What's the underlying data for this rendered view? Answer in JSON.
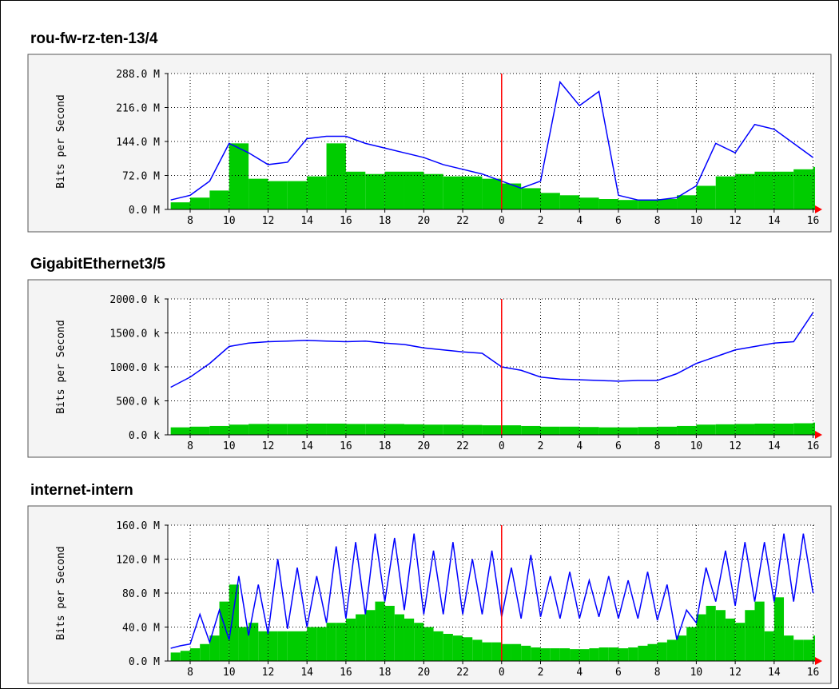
{
  "chart_data": [
    {
      "type": "mrtg",
      "title": "rou-fw-rz-ten-13/4",
      "y_label": "Bits per Second",
      "ylim": [
        0,
        288
      ],
      "yticks": [
        {
          "value": 0,
          "label": "0.0 M"
        },
        {
          "value": 72,
          "label": "72.0 M"
        },
        {
          "value": 144,
          "label": "144.0 M"
        },
        {
          "value": 216,
          "label": "216.0 M"
        },
        {
          "value": 288,
          "label": "288.0 M"
        }
      ],
      "xlim": [
        6.85,
        40.1
      ],
      "xticks": [
        8,
        10,
        12,
        14,
        16,
        18,
        20,
        22,
        {
          "value": 24,
          "label": "0"
        },
        {
          "value": 26,
          "label": "2"
        },
        {
          "value": 28,
          "label": "4"
        },
        {
          "value": 30,
          "label": "6"
        },
        {
          "value": 32,
          "label": "8"
        },
        {
          "value": 34,
          "label": "10"
        },
        {
          "value": 36,
          "label": "12"
        },
        {
          "value": 38,
          "label": "14"
        },
        {
          "value": 40,
          "label": "16"
        }
      ],
      "vline": 24,
      "grid": true,
      "x": [
        7,
        8,
        9,
        10,
        11,
        12,
        13,
        14,
        15,
        16,
        17,
        18,
        19,
        20,
        21,
        22,
        23,
        24,
        25,
        26,
        27,
        28,
        29,
        30,
        31,
        32,
        33,
        34,
        35,
        36,
        37,
        38,
        39,
        40
      ],
      "series": [
        {
          "style": "area",
          "color": "#00cc00",
          "values": [
            15,
            25,
            40,
            140,
            65,
            60,
            60,
            70,
            140,
            80,
            75,
            80,
            80,
            75,
            70,
            70,
            65,
            55,
            45,
            35,
            30,
            25,
            22,
            20,
            20,
            22,
            30,
            50,
            70,
            75,
            80,
            80,
            85,
            90
          ]
        },
        {
          "style": "line",
          "color": "#0000ff",
          "values": [
            20,
            30,
            60,
            140,
            120,
            95,
            100,
            150,
            155,
            155,
            140,
            130,
            120,
            110,
            95,
            85,
            75,
            60,
            45,
            60,
            270,
            220,
            250,
            30,
            20,
            20,
            25,
            50,
            140,
            120,
            180,
            170,
            140,
            110
          ]
        }
      ]
    },
    {
      "type": "mrtg",
      "title": "GigabitEthernet3/5",
      "y_label": "Bits per Second",
      "ylim": [
        0,
        2000
      ],
      "yticks": [
        {
          "value": 0,
          "label": "0.0 k"
        },
        {
          "value": 500,
          "label": "500.0 k"
        },
        {
          "value": 1000,
          "label": "1000.0 k"
        },
        {
          "value": 1500,
          "label": "1500.0 k"
        },
        {
          "value": 2000,
          "label": "2000.0 k"
        }
      ],
      "xlim": [
        6.85,
        40.1
      ],
      "xticks": [
        8,
        10,
        12,
        14,
        16,
        18,
        20,
        22,
        {
          "value": 24,
          "label": "0"
        },
        {
          "value": 26,
          "label": "2"
        },
        {
          "value": 28,
          "label": "4"
        },
        {
          "value": 30,
          "label": "6"
        },
        {
          "value": 32,
          "label": "8"
        },
        {
          "value": 34,
          "label": "10"
        },
        {
          "value": 36,
          "label": "12"
        },
        {
          "value": 38,
          "label": "14"
        },
        {
          "value": 40,
          "label": "16"
        }
      ],
      "vline": 24,
      "grid": true,
      "x": [
        7,
        8,
        9,
        10,
        11,
        12,
        13,
        14,
        15,
        16,
        17,
        18,
        19,
        20,
        21,
        22,
        23,
        24,
        25,
        26,
        27,
        28,
        29,
        30,
        31,
        32,
        33,
        34,
        35,
        36,
        37,
        38,
        39,
        40
      ],
      "series": [
        {
          "style": "area",
          "color": "#00cc00",
          "values": [
            110,
            120,
            130,
            150,
            160,
            160,
            160,
            165,
            165,
            160,
            160,
            160,
            155,
            150,
            150,
            145,
            140,
            140,
            130,
            120,
            120,
            115,
            110,
            110,
            115,
            120,
            130,
            150,
            155,
            160,
            165,
            165,
            170,
            180
          ]
        },
        {
          "style": "line",
          "color": "#0000ff",
          "values": [
            700,
            850,
            1050,
            1300,
            1350,
            1370,
            1380,
            1390,
            1380,
            1370,
            1380,
            1350,
            1330,
            1280,
            1250,
            1220,
            1200,
            1000,
            950,
            850,
            820,
            810,
            800,
            790,
            800,
            800,
            900,
            1050,
            1150,
            1250,
            1300,
            1350,
            1370,
            1800
          ]
        }
      ]
    },
    {
      "type": "mrtg",
      "title": "internet-intern",
      "y_label": "Bits per Second",
      "ylim": [
        0,
        160
      ],
      "yticks": [
        {
          "value": 0,
          "label": "0.0 M"
        },
        {
          "value": 40,
          "label": "40.0 M"
        },
        {
          "value": 80,
          "label": "80.0 M"
        },
        {
          "value": 120,
          "label": "120.0 M"
        },
        {
          "value": 160,
          "label": "160.0 M"
        }
      ],
      "xlim": [
        6.85,
        40.1
      ],
      "xticks": [
        8,
        10,
        12,
        14,
        16,
        18,
        20,
        22,
        {
          "value": 24,
          "label": "0"
        },
        {
          "value": 26,
          "label": "2"
        },
        {
          "value": 28,
          "label": "4"
        },
        {
          "value": 30,
          "label": "6"
        },
        {
          "value": 32,
          "label": "8"
        },
        {
          "value": 34,
          "label": "10"
        },
        {
          "value": 36,
          "label": "12"
        },
        {
          "value": 38,
          "label": "14"
        },
        {
          "value": 40,
          "label": "16"
        }
      ],
      "vline": 24,
      "grid": true,
      "x": [
        7,
        7.5,
        8,
        8.5,
        9,
        9.5,
        10,
        10.5,
        11,
        11.5,
        12,
        12.5,
        13,
        13.5,
        14,
        14.5,
        15,
        15.5,
        16,
        16.5,
        17,
        17.5,
        18,
        18.5,
        19,
        19.5,
        20,
        20.5,
        21,
        21.5,
        22,
        22.5,
        23,
        23.5,
        24,
        24.5,
        25,
        25.5,
        26,
        26.5,
        27,
        27.5,
        28,
        28.5,
        29,
        29.5,
        30,
        30.5,
        31,
        31.5,
        32,
        32.5,
        33,
        33.5,
        34,
        34.5,
        35,
        35.5,
        36,
        36.5,
        37,
        37.5,
        38,
        38.5,
        39,
        39.5,
        40
      ],
      "series": [
        {
          "style": "area",
          "color": "#00cc00",
          "values": [
            10,
            12,
            15,
            20,
            30,
            70,
            90,
            40,
            45,
            35,
            35,
            35,
            35,
            35,
            40,
            40,
            45,
            45,
            50,
            55,
            60,
            70,
            65,
            55,
            50,
            45,
            40,
            35,
            32,
            30,
            28,
            25,
            22,
            22,
            20,
            20,
            18,
            16,
            15,
            15,
            15,
            14,
            14,
            15,
            16,
            16,
            15,
            16,
            18,
            20,
            22,
            25,
            30,
            40,
            55,
            65,
            60,
            50,
            45,
            60,
            70,
            35,
            75,
            30,
            25,
            25,
            30
          ]
        },
        {
          "style": "line",
          "color": "#0000ff",
          "values": [
            15,
            18,
            20,
            55,
            22,
            60,
            25,
            100,
            30,
            90,
            32,
            120,
            38,
            110,
            40,
            100,
            45,
            135,
            50,
            140,
            55,
            150,
            70,
            145,
            60,
            150,
            55,
            130,
            55,
            140,
            55,
            120,
            55,
            130,
            52,
            110,
            50,
            125,
            52,
            100,
            50,
            105,
            50,
            95,
            52,
            100,
            50,
            95,
            50,
            105,
            48,
            90,
            25,
            60,
            45,
            110,
            70,
            130,
            65,
            140,
            70,
            140,
            70,
            150,
            70,
            150,
            80
          ]
        }
      ]
    }
  ]
}
